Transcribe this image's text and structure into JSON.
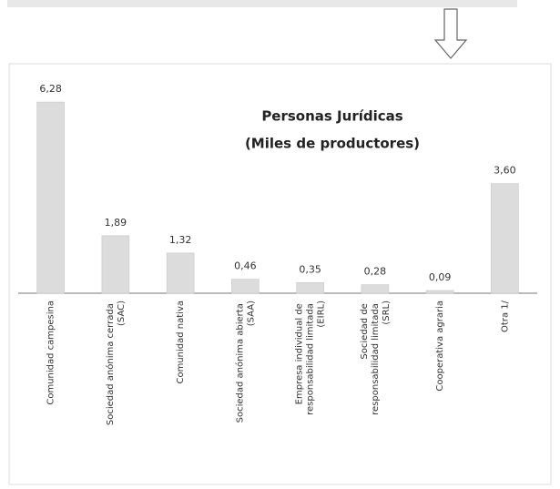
{
  "chart_data": {
    "type": "bar",
    "title": "Personas Jurídicas",
    "subtitle": "(Miles de productores)",
    "categories": [
      "Comunidad campesina",
      "Sociedad anónima cerrada (SAC)",
      "Comunidad nativa",
      "Sociedad anónima abierta (SAA)",
      "Empresa individual de responsabilidad limitada (EIRL)",
      "Sociedad de responsabilidad limitada (SRL)",
      "Cooperativa agraria",
      "Otra 1/"
    ],
    "values": [
      6.28,
      1.89,
      1.32,
      0.46,
      0.35,
      0.28,
      0.09,
      3.6
    ],
    "value_labels": [
      "6,28",
      "1,89",
      "1,32",
      "0,46",
      "0,35",
      "0,28",
      "0,09",
      "3,60"
    ],
    "color": "#dcdcdc",
    "ylim": [
      0,
      7
    ]
  }
}
